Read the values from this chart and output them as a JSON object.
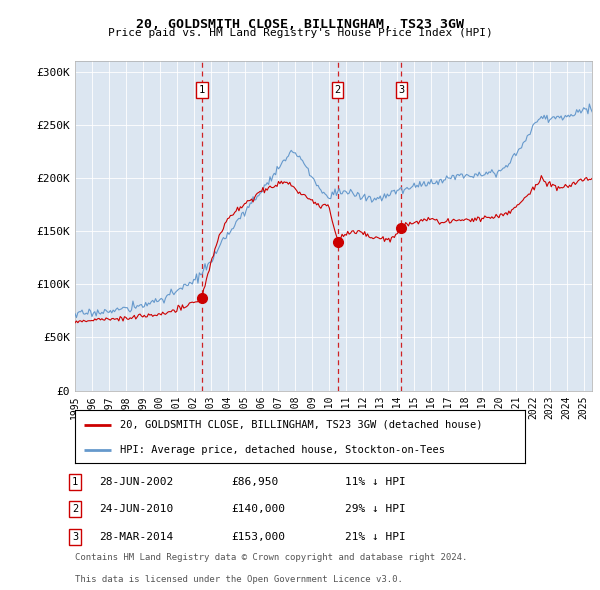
{
  "title": "20, GOLDSMITH CLOSE, BILLINGHAM, TS23 3GW",
  "subtitle": "Price paid vs. HM Land Registry's House Price Index (HPI)",
  "ylabel_ticks": [
    "£0",
    "£50K",
    "£100K",
    "£150K",
    "£200K",
    "£250K",
    "£300K"
  ],
  "ytick_values": [
    0,
    50000,
    100000,
    150000,
    200000,
    250000,
    300000
  ],
  "ylim": [
    0,
    310000
  ],
  "xlim_start": 1995.0,
  "xlim_end": 2025.5,
  "background_color": "#dce6f1",
  "hpi_color": "#6699cc",
  "price_color": "#cc0000",
  "dashed_line_color": "#cc0000",
  "legend_label_price": "20, GOLDSMITH CLOSE, BILLINGHAM, TS23 3GW (detached house)",
  "legend_label_hpi": "HPI: Average price, detached house, Stockton-on-Tees",
  "sales": [
    {
      "num": 1,
      "date": "28-JUN-2002",
      "price": 86950,
      "price_str": "£86,950",
      "x": 2002.48,
      "hpi_pct": "11% ↓ HPI"
    },
    {
      "num": 2,
      "date": "24-JUN-2010",
      "price": 140000,
      "price_str": "£140,000",
      "x": 2010.48,
      "hpi_pct": "29% ↓ HPI"
    },
    {
      "num": 3,
      "date": "28-MAR-2014",
      "price": 153000,
      "price_str": "£153,000",
      "x": 2014.24,
      "hpi_pct": "21% ↓ HPI"
    }
  ],
  "footer_line1": "Contains HM Land Registry data © Crown copyright and database right 2024.",
  "footer_line2": "This data is licensed under the Open Government Licence v3.0.",
  "xtick_years": [
    1995,
    1996,
    1997,
    1998,
    1999,
    2000,
    2001,
    2002,
    2003,
    2004,
    2005,
    2006,
    2007,
    2008,
    2009,
    2010,
    2011,
    2012,
    2013,
    2014,
    2015,
    2016,
    2017,
    2018,
    2019,
    2020,
    2021,
    2022,
    2023,
    2024,
    2025
  ],
  "hpi_anchors_x": [
    1995.0,
    1996.0,
    1997.0,
    1998.0,
    1999.0,
    2000.0,
    2001.0,
    2002.0,
    2003.0,
    2004.0,
    2005.0,
    2006.0,
    2007.0,
    2007.8,
    2008.5,
    2009.0,
    2009.5,
    2010.0,
    2010.5,
    2011.0,
    2012.0,
    2012.5,
    2013.0,
    2014.0,
    2015.0,
    2016.0,
    2017.0,
    2018.0,
    2019.0,
    2020.0,
    2020.5,
    2021.0,
    2021.5,
    2022.0,
    2022.5,
    2023.0,
    2024.0,
    2024.5,
    2025.0
  ],
  "hpi_anchors_y": [
    72000,
    73000,
    75000,
    77000,
    80000,
    86000,
    93000,
    103000,
    120000,
    148000,
    168000,
    188000,
    210000,
    225000,
    215000,
    200000,
    188000,
    183000,
    188000,
    187000,
    182000,
    180000,
    181000,
    188000,
    192000,
    196000,
    200000,
    203000,
    205000,
    206000,
    212000,
    222000,
    235000,
    248000,
    258000,
    256000,
    258000,
    262000,
    265000
  ],
  "price_anchors_x": [
    1995.0,
    1996.0,
    1997.0,
    1998.0,
    1999.0,
    2000.0,
    2001.0,
    2002.0,
    2002.48,
    2002.6,
    2003.0,
    2003.5,
    2004.0,
    2005.0,
    2006.0,
    2007.0,
    2007.5,
    2008.0,
    2008.8,
    2009.5,
    2009.9,
    2010.0,
    2010.48,
    2010.6,
    2011.0,
    2011.5,
    2012.0,
    2012.5,
    2013.0,
    2013.5,
    2014.0,
    2014.24,
    2014.5,
    2015.0,
    2015.5,
    2016.0,
    2016.5,
    2017.0,
    2017.5,
    2018.0,
    2018.5,
    2019.0,
    2019.5,
    2020.0,
    2020.5,
    2021.0,
    2021.5,
    2022.0,
    2022.5,
    2023.0,
    2023.5,
    2024.0,
    2024.5,
    2025.0
  ],
  "price_anchors_y": [
    65000,
    66000,
    67000,
    68000,
    70000,
    72000,
    76000,
    82000,
    86950,
    95000,
    120000,
    145000,
    162000,
    175000,
    188000,
    195000,
    196000,
    190000,
    180000,
    173000,
    175000,
    170000,
    140000,
    145000,
    148000,
    150000,
    148000,
    144000,
    143000,
    142000,
    148000,
    153000,
    155000,
    158000,
    160000,
    162000,
    158000,
    160000,
    158000,
    162000,
    160000,
    163000,
    163000,
    165000,
    168000,
    172000,
    180000,
    190000,
    198000,
    195000,
    190000,
    193000,
    196000,
    200000
  ]
}
